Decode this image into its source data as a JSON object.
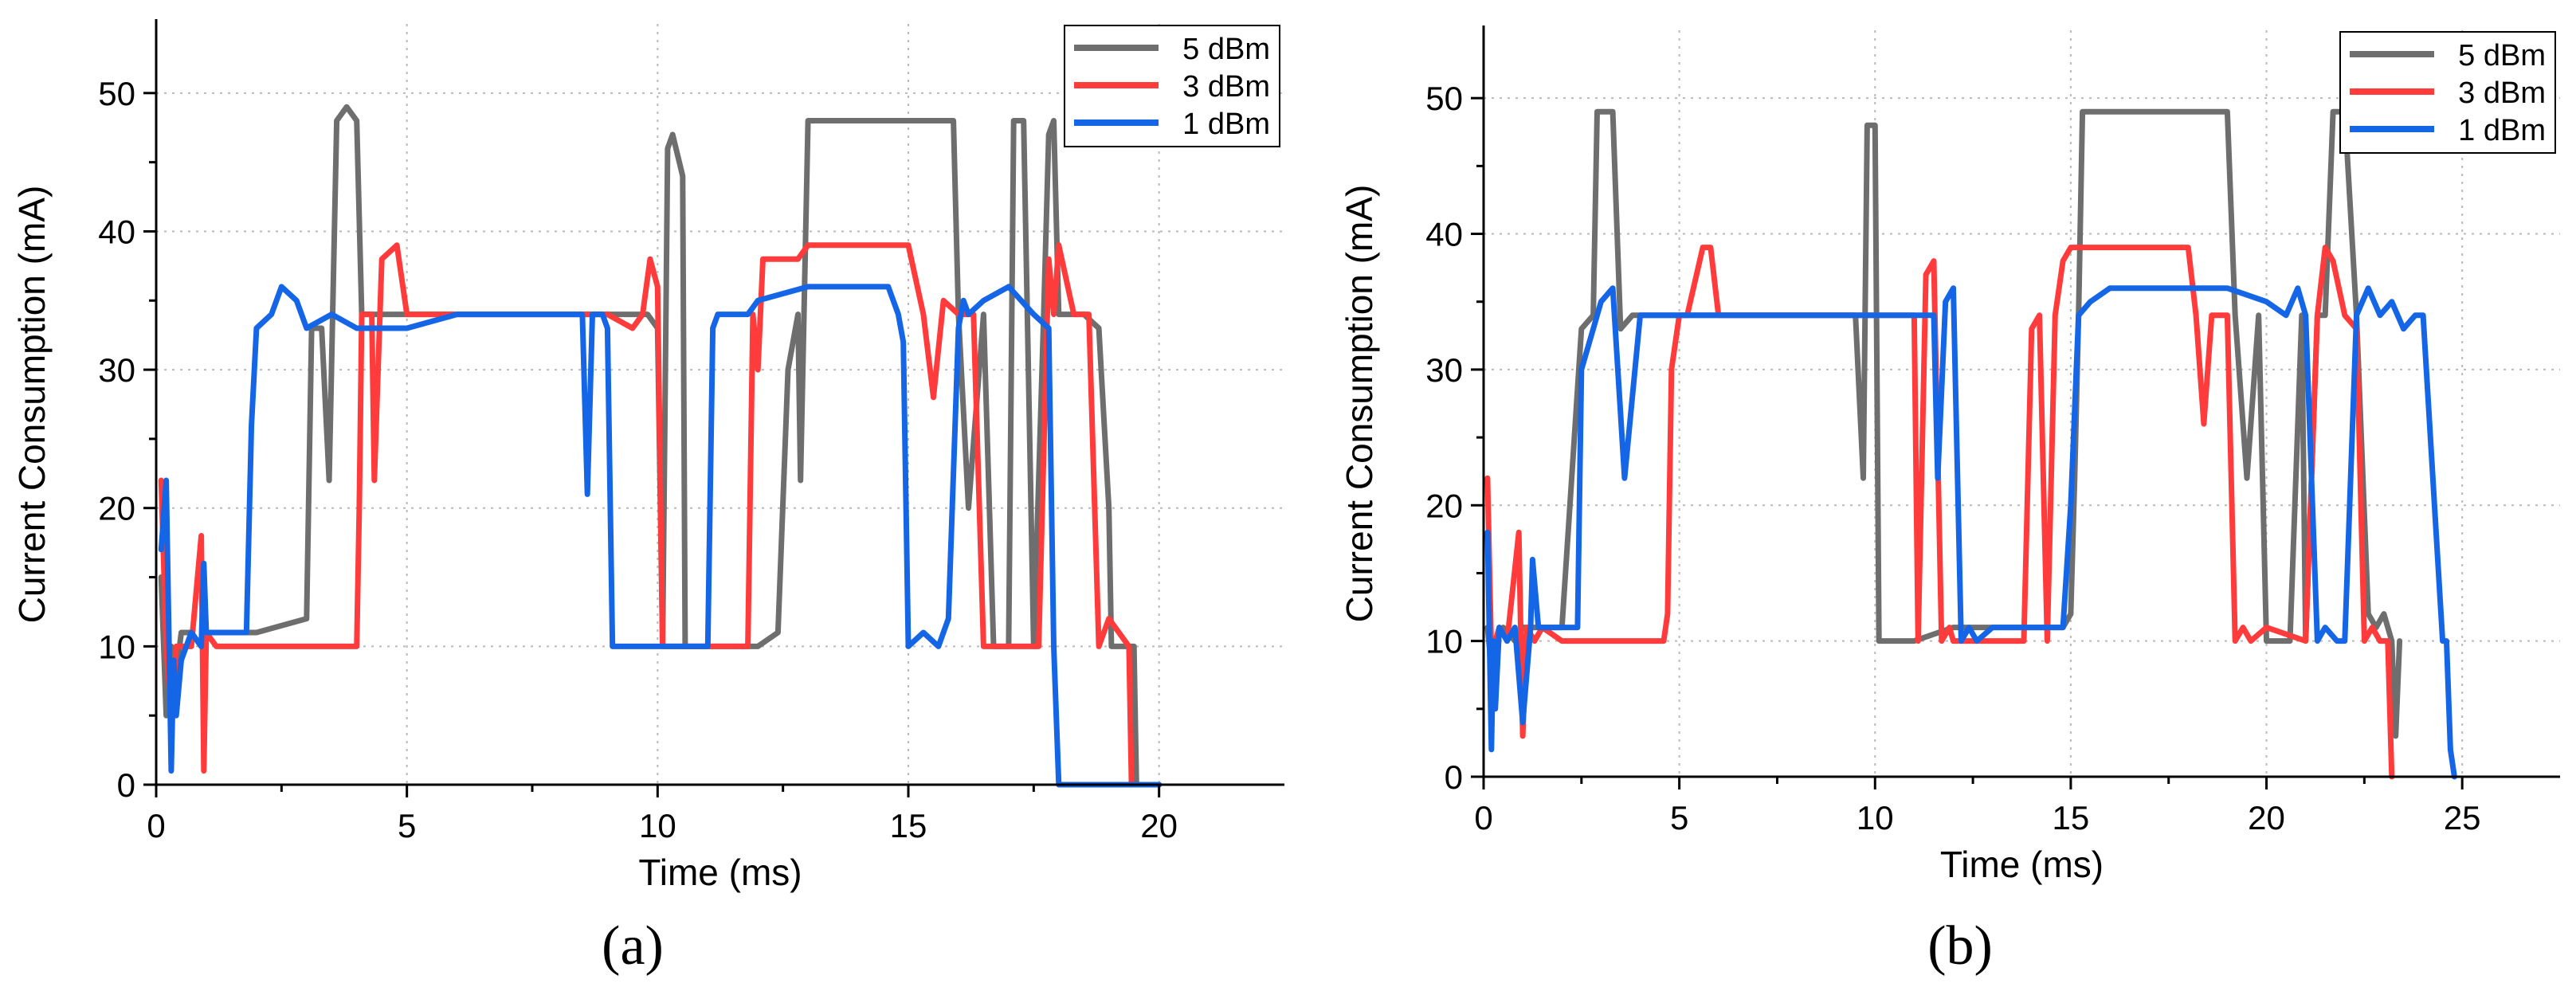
{
  "figure": {
    "panels": [
      "(a)",
      "(b)"
    ]
  },
  "colors": {
    "5 dBm": "#6e6e6e",
    "3 dBm": "#ff3b3b",
    "1 dBm": "#1466e6",
    "grid": "#b9b9b9",
    "axis": "#000000"
  },
  "chart_data": [
    {
      "type": "line",
      "panel_label": "(a)",
      "xlabel": "Time (ms)",
      "ylabel": "Current Consumption (mA)",
      "xlim": [
        0,
        22.5
      ],
      "ylim": [
        0,
        55
      ],
      "xticks": [
        0,
        5,
        10,
        15,
        20
      ],
      "yticks": [
        0,
        10,
        20,
        30,
        40,
        50
      ],
      "grid": true,
      "legend_position": "top-right",
      "series": [
        {
          "name": "5 dBm",
          "x": [
            0.1,
            0.2,
            0.3,
            0.4,
            0.5,
            0.7,
            0.9,
            1.0,
            1.2,
            1.5,
            1.9,
            2.0,
            3.0,
            3.1,
            3.3,
            3.45,
            3.6,
            3.8,
            4.0,
            4.1,
            4.4,
            4.7,
            5.0,
            6.0,
            8.0,
            9.0,
            9.5,
            9.8,
            10.0,
            10.1,
            10.2,
            10.3,
            10.5,
            10.55,
            10.7,
            12.0,
            12.4,
            12.6,
            12.8,
            12.85,
            13.0,
            14.0,
            15.0,
            15.5,
            15.9,
            16.0,
            16.2,
            16.5,
            16.7,
            17.0,
            17.1,
            17.3,
            17.5,
            17.7,
            17.8,
            17.9,
            18.0,
            18.2,
            18.5,
            18.8,
            19.0,
            19.05,
            19.2,
            19.5,
            19.55,
            20.0
          ],
          "y": [
            15,
            5,
            10,
            8,
            11,
            11,
            10,
            11,
            11,
            11,
            11,
            11,
            12,
            33,
            33,
            22,
            48,
            49,
            48,
            34,
            34,
            34,
            34,
            34,
            34,
            34,
            34,
            34,
            33,
            10,
            46,
            47,
            44,
            10,
            10,
            10,
            11,
            30,
            34,
            22,
            48,
            48,
            48,
            48,
            48,
            34,
            20,
            34,
            10,
            10,
            48,
            48,
            10,
            34,
            47,
            48,
            34,
            34,
            34,
            33,
            20,
            10,
            10,
            10,
            0,
            0
          ]
        },
        {
          "name": "3 dBm",
          "x": [
            0.1,
            0.2,
            0.3,
            0.4,
            0.5,
            0.7,
            0.9,
            0.95,
            1.0,
            1.2,
            1.5,
            2.0,
            3.0,
            3.5,
            4.0,
            4.05,
            4.1,
            4.3,
            4.35,
            4.5,
            4.8,
            5.0,
            6.0,
            8.0,
            9.0,
            9.5,
            9.7,
            9.85,
            10.0,
            10.1,
            10.3,
            11.5,
            11.8,
            11.9,
            12.0,
            12.1,
            12.3,
            12.6,
            12.8,
            13.0,
            14.0,
            15.0,
            15.3,
            15.5,
            15.7,
            16.0,
            16.3,
            16.5,
            17.0,
            17.3,
            17.6,
            17.8,
            17.9,
            18.0,
            18.3,
            18.6,
            18.8,
            19.0,
            19.2,
            19.4,
            19.45
          ],
          "y": [
            22,
            10,
            5,
            10,
            10,
            10,
            18,
            1,
            11,
            10,
            10,
            10,
            10,
            10,
            10,
            20,
            34,
            34,
            22,
            38,
            39,
            34,
            34,
            34,
            34,
            33,
            34,
            38,
            36,
            10,
            10,
            10,
            10,
            34,
            30,
            38,
            38,
            38,
            38,
            39,
            39,
            39,
            34,
            28,
            35,
            34,
            34,
            10,
            10,
            10,
            10,
            38,
            34,
            39,
            34,
            34,
            10,
            12,
            11,
            10,
            0
          ]
        },
        {
          "name": "1 dBm",
          "x": [
            0.1,
            0.2,
            0.3,
            0.35,
            0.4,
            0.5,
            0.7,
            0.9,
            0.95,
            1.0,
            1.5,
            1.8,
            1.9,
            2.0,
            2.3,
            2.5,
            2.8,
            3.0,
            3.5,
            4.0,
            5.0,
            6.0,
            7.0,
            8.0,
            8.5,
            8.6,
            8.7,
            8.9,
            9.0,
            9.1,
            10.0,
            11.0,
            11.1,
            11.2,
            11.5,
            11.8,
            12.0,
            13.0,
            14.0,
            14.6,
            14.8,
            14.9,
            15.0,
            15.3,
            15.6,
            15.8,
            16.0,
            16.1,
            16.2,
            16.5,
            17.0,
            17.5,
            17.8,
            17.9,
            18.0,
            18.5,
            19.0,
            20.0
          ],
          "y": [
            17,
            22,
            1,
            9,
            5,
            9,
            11,
            10,
            16,
            11,
            11,
            11,
            26,
            33,
            34,
            36,
            35,
            33,
            34,
            33,
            33,
            34,
            34,
            34,
            34,
            21,
            34,
            34,
            33,
            10,
            10,
            10,
            33,
            34,
            34,
            34,
            35,
            36,
            36,
            36,
            34,
            32,
            10,
            11,
            10,
            12,
            33,
            35,
            34,
            35,
            36,
            34,
            33,
            10,
            0,
            0,
            0,
            0
          ]
        }
      ]
    },
    {
      "type": "line",
      "panel_label": "(b)",
      "xlabel": "Time (ms)",
      "ylabel": "Current Consumption (mA)",
      "xlim": [
        0,
        27.5
      ],
      "ylim": [
        0,
        55
      ],
      "xticks": [
        0,
        5,
        10,
        15,
        20,
        25
      ],
      "yticks": [
        0,
        10,
        20,
        30,
        40,
        50
      ],
      "grid": true,
      "legend_position": "top-right",
      "series": [
        {
          "name": "5 dBm",
          "x": [
            0.1,
            0.2,
            0.3,
            0.5,
            0.8,
            1.0,
            1.5,
            2.0,
            2.5,
            2.8,
            2.9,
            3.0,
            3.3,
            3.5,
            3.8,
            4.0,
            5.0,
            7.0,
            9.0,
            9.5,
            9.7,
            9.8,
            10.0,
            10.1,
            10.3,
            11.0,
            12.0,
            13.0,
            14.0,
            14.8,
            15.0,
            15.1,
            15.2,
            15.3,
            15.5,
            16.0,
            18.0,
            19.0,
            19.2,
            19.5,
            19.8,
            20.0,
            20.3,
            20.6,
            20.9,
            21.0,
            21.3,
            21.5,
            21.7,
            22.0,
            22.3,
            22.6,
            22.8,
            23.0,
            23.2,
            23.3,
            23.4
          ],
          "y": [
            11,
            8,
            10,
            11,
            10,
            11,
            11,
            11,
            33,
            34,
            49,
            49,
            49,
            33,
            34,
            34,
            34,
            34,
            34,
            34,
            22,
            48,
            48,
            10,
            10,
            10,
            11,
            11,
            11,
            11,
            12,
            22,
            34,
            49,
            49,
            49,
            49,
            49,
            34,
            22,
            34,
            10,
            10,
            10,
            34,
            10,
            34,
            34,
            49,
            49,
            34,
            12,
            11,
            12,
            10,
            3,
            10
          ]
        },
        {
          "name": "3 dBm",
          "x": [
            0.1,
            0.2,
            0.3,
            0.4,
            0.6,
            0.9,
            1.0,
            1.1,
            1.3,
            1.5,
            2.0,
            3.0,
            4.0,
            4.6,
            4.7,
            4.8,
            5.0,
            5.2,
            5.6,
            5.8,
            6.0,
            8.0,
            10.0,
            11.0,
            11.1,
            11.3,
            11.5,
            11.7,
            11.9,
            12.0,
            13.0,
            13.8,
            14.0,
            14.2,
            14.4,
            14.6,
            14.8,
            15.0,
            15.2,
            16.0,
            17.0,
            18.0,
            18.2,
            18.4,
            18.6,
            19.0,
            19.2,
            19.4,
            19.6,
            20.0,
            21.0,
            21.3,
            21.5,
            21.7,
            22.0,
            22.3,
            22.5,
            22.7,
            22.9,
            23.1,
            23.2
          ],
          "y": [
            22,
            9,
            10,
            11,
            10,
            18,
            3,
            11,
            10,
            11,
            10,
            10,
            10,
            10,
            12,
            30,
            34,
            34,
            39,
            39,
            34,
            34,
            34,
            34,
            10,
            37,
            38,
            10,
            11,
            10,
            10,
            10,
            33,
            34,
            10,
            34,
            38,
            39,
            39,
            39,
            39,
            39,
            34,
            26,
            34,
            34,
            10,
            11,
            10,
            11,
            10,
            34,
            39,
            38,
            34,
            33,
            10,
            11,
            10,
            10,
            0
          ]
        },
        {
          "name": "1 dBm",
          "x": [
            0.1,
            0.2,
            0.25,
            0.3,
            0.4,
            0.6,
            0.8,
            1.0,
            1.2,
            1.25,
            1.4,
            2.0,
            2.4,
            2.5,
            2.8,
            3.0,
            3.3,
            3.6,
            4.0,
            5.0,
            7.0,
            9.0,
            11.0,
            11.5,
            11.6,
            11.8,
            12.0,
            12.2,
            12.4,
            12.6,
            13.0,
            14.0,
            14.8,
            15.0,
            15.2,
            15.5,
            16.0,
            17.0,
            18.0,
            19.0,
            20.0,
            20.5,
            20.8,
            21.0,
            21.3,
            21.5,
            21.8,
            22.0,
            22.3,
            22.6,
            22.9,
            23.2,
            23.5,
            23.8,
            24.0,
            24.5,
            24.6,
            24.7,
            24.8
          ],
          "y": [
            18,
            2,
            10,
            5,
            11,
            10,
            11,
            4,
            11,
            16,
            11,
            11,
            11,
            30,
            33,
            35,
            36,
            22,
            34,
            34,
            34,
            34,
            34,
            34,
            22,
            35,
            36,
            10,
            11,
            10,
            11,
            11,
            11,
            20,
            34,
            35,
            36,
            36,
            36,
            36,
            35,
            34,
            36,
            34,
            10,
            11,
            10,
            10,
            34,
            36,
            34,
            35,
            33,
            34,
            34,
            10,
            10,
            2,
            0
          ]
        }
      ]
    }
  ]
}
